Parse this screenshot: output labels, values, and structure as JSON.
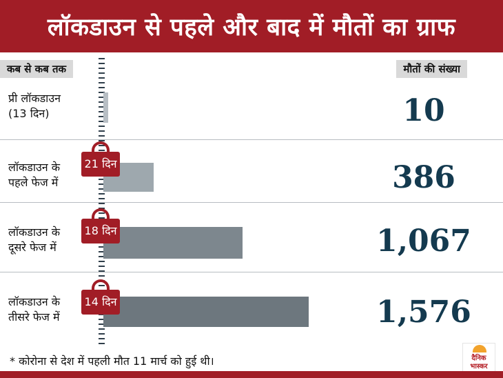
{
  "title": "लॉकडाउन से पहले और बाद में मौतों का ग्राफ",
  "header": {
    "left": "कब से कब तक",
    "right": "मौतों की संख्या"
  },
  "rows": [
    {
      "label_line1": "प्री लॉकडाउन",
      "label_line2": "(13 दिन)",
      "days_badge": "",
      "count_text": "10"
    },
    {
      "label_line1": "लॉकडाउन के",
      "label_line2": "पहले फेज में",
      "days_badge": "21 दिन",
      "count_text": "386"
    },
    {
      "label_line1": "लॉकडाउन के",
      "label_line2": "दूसरे फेज में",
      "days_badge": "18 दिन",
      "count_text": "1,067"
    },
    {
      "label_line1": "लॉकडाउन के",
      "label_line2": "तीसरे फेज में",
      "days_badge": "14 दिन",
      "count_text": "1,576"
    }
  ],
  "footnote": "* कोरोना से देश में पहली मौत 11 मार्च को हुई थी।",
  "logo": {
    "line1": "दैनिक",
    "line2": "भास्कर"
  },
  "colors": {
    "brand": "#a11d26",
    "number": "#143a4f",
    "bars": [
      "#b7bec4",
      "#9ea8ae",
      "#7d878e",
      "#6d777e"
    ]
  },
  "chart_data": {
    "type": "bar",
    "orientation": "horizontal",
    "categories": [
      "प्री लॉकडाउन (13 दिन)",
      "लॉकडाउन के पहले फेज में",
      "लॉकडाउन के दूसरे फेज में",
      "लॉकडाउन के तीसरे फेज में"
    ],
    "values": [
      10,
      386,
      1067,
      1576
    ],
    "title": "लॉकडाउन से पहले और बाद में मौतों का ग्राफ",
    "xlabel": "मौतों की संख्या",
    "ylabel": "कब से कब तक",
    "grid": false
  }
}
